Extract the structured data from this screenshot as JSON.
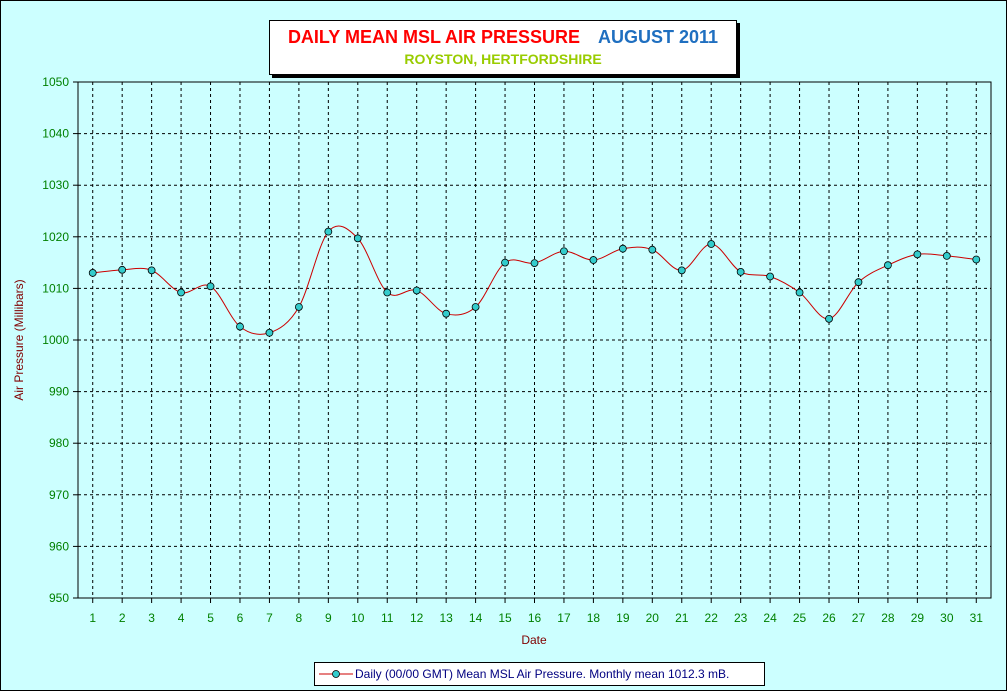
{
  "chart_data": {
    "type": "line",
    "title": "DAILY MEAN MSL AIR PRESSURE",
    "title_period": "AUGUST 2011",
    "subtitle": "ROYSTON, HERTFORDSHIRE",
    "xlabel": "Date",
    "ylabel": "Air Pressure (Millibars)",
    "ylim": [
      950,
      1050
    ],
    "ytick_step": 10,
    "grid": true,
    "legend_position": "bottom-center",
    "categories": [
      "1",
      "2",
      "3",
      "4",
      "5",
      "6",
      "7",
      "8",
      "9",
      "10",
      "11",
      "12",
      "13",
      "14",
      "15",
      "16",
      "17",
      "18",
      "19",
      "20",
      "21",
      "22",
      "23",
      "24",
      "25",
      "26",
      "27",
      "28",
      "29",
      "30",
      "31"
    ],
    "series": [
      {
        "name": "Daily (00/00 GMT) Mean MSL Air Pressure. Monthly mean 1012.3 mB.",
        "values": [
          1013.0,
          1013.6,
          1013.5,
          1009.2,
          1010.4,
          1002.6,
          1001.4,
          1006.4,
          1021.0,
          1019.7,
          1009.2,
          1009.6,
          1005.1,
          1006.4,
          1015.0,
          1014.9,
          1017.2,
          1015.5,
          1017.7,
          1017.5,
          1013.5,
          1018.6,
          1013.2,
          1012.3,
          1009.2,
          1004.1,
          1011.2,
          1014.5,
          1016.6,
          1016.3,
          1015.6
        ]
      }
    ],
    "colors": {
      "line": "#cc0000",
      "marker_fill": "#33cccc",
      "background": "#ccffff",
      "grid": "#000000",
      "tick_labels": "#008000",
      "axis_titles": "#800000"
    }
  }
}
